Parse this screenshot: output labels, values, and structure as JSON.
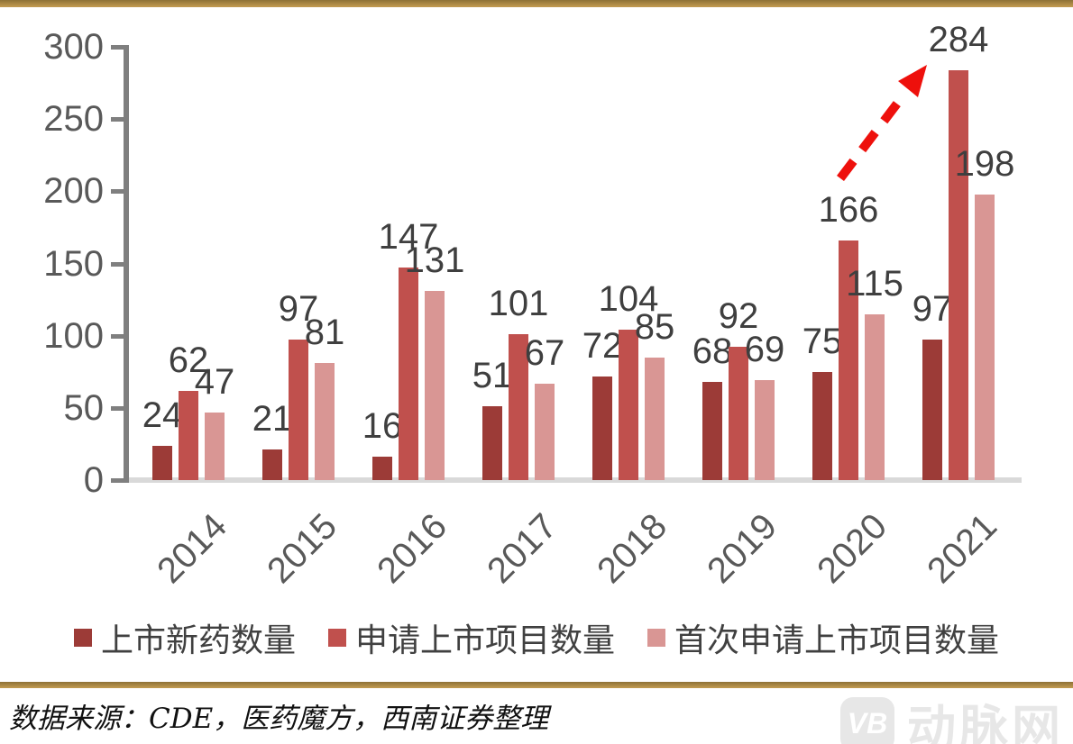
{
  "chart_data": {
    "type": "bar",
    "categories": [
      "2014",
      "2015",
      "2016",
      "2017",
      "2018",
      "2019",
      "2020",
      "2021"
    ],
    "series": [
      {
        "name": "上市新药数量",
        "color": "#9c3b37",
        "values": [
          24,
          21,
          16,
          51,
          72,
          68,
          75,
          97
        ]
      },
      {
        "name": "申请上市项目数量",
        "color": "#c0504d",
        "values": [
          62,
          97,
          147,
          101,
          104,
          92,
          166,
          284
        ]
      },
      {
        "name": "首次申请上市项目数量",
        "color": "#d99694",
        "values": [
          47,
          81,
          131,
          67,
          85,
          69,
          115,
          198
        ]
      }
    ],
    "title": "",
    "xlabel": "",
    "ylabel": "",
    "ylim": [
      0,
      300
    ],
    "yticks": [
      0,
      50,
      100,
      150,
      200,
      250,
      300
    ],
    "grid": false,
    "legend_position": "bottom",
    "annotations": [
      {
        "type": "dashed-arrow",
        "color": "#ee100c",
        "from_category": "2020",
        "to_category": "2021",
        "note": "upward trend arrow pointing to 284"
      }
    ]
  },
  "style_colors": {
    "axis_gray": "#7f7f7f",
    "tick_label_gray": "#595959",
    "value_label_gray": "#3f3f3f",
    "baseline_gray": "#d9d9d9",
    "border_gold": "#b08c3e"
  },
  "footer": {
    "source": "数据来源：CDE，医药魔方，西南证券整理",
    "watermark_logo": "VB",
    "watermark_text": "动脉网"
  }
}
